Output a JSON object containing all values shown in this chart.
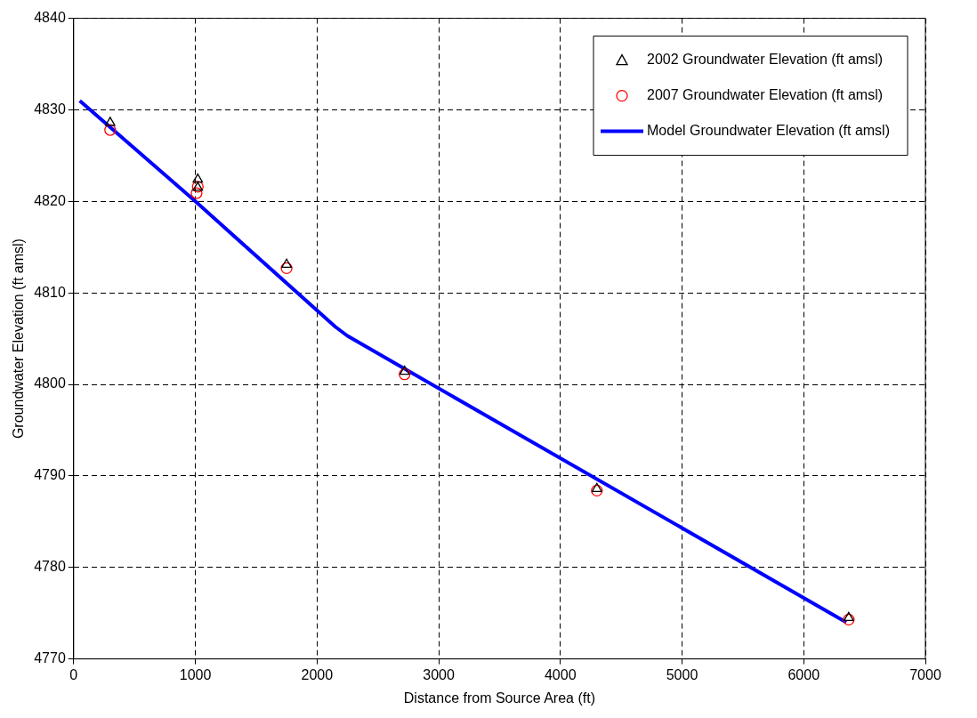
{
  "chart_data": {
    "type": "scatter",
    "xlabel": "Distance from Source Area (ft)",
    "ylabel": "Groundwater Elevation (ft amsl)",
    "xlim": [
      0,
      7000
    ],
    "xticks": [
      0,
      1000,
      2000,
      3000,
      4000,
      5000,
      6000,
      7000
    ],
    "ylim": [
      4770,
      4840
    ],
    "yticks": [
      4770,
      4780,
      4790,
      4800,
      4810,
      4820,
      4830,
      4840
    ],
    "grid": true,
    "legend": "top right",
    "series": [
      {
        "name": "2002 Groundwater Elevation (ft amsl)",
        "marker": "triangle",
        "color": "#000000",
        "x": [
          300,
          1020,
          1020,
          1750,
          2720,
          4300,
          6370
        ],
        "values": [
          4828.6,
          4822.4,
          4821.5,
          4813.1,
          4801.4,
          4788.6,
          4774.5
        ]
      },
      {
        "name": "2007 Groundwater Elevation (ft amsl)",
        "marker": "circle",
        "color": "#ff0000",
        "x": [
          300,
          1010,
          1020,
          1750,
          2720,
          4300,
          6370
        ],
        "values": [
          4827.8,
          4820.9,
          4821.6,
          4812.7,
          4801.1,
          4788.4,
          4774.3
        ]
      },
      {
        "name": "Model Groundwater Elevation (ft amsl)",
        "type": "line",
        "marker": "none",
        "line_style": "solid",
        "color": "#0000ff",
        "x": [
          50,
          1000,
          2150,
          2250,
          2720,
          6350
        ],
        "values": [
          4831,
          4820,
          4806.3,
          4805.3,
          4801.7,
          4774.0
        ]
      }
    ]
  }
}
